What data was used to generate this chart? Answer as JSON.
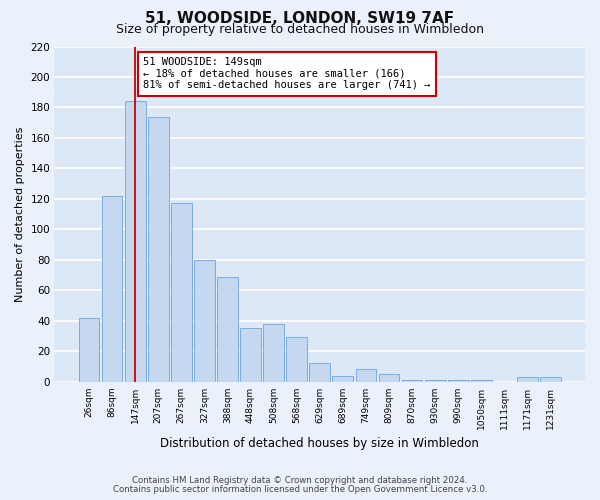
{
  "title": "51, WOODSIDE, LONDON, SW19 7AF",
  "subtitle": "Size of property relative to detached houses in Wimbledon",
  "xlabel": "Distribution of detached houses by size in Wimbledon",
  "ylabel": "Number of detached properties",
  "footnote1": "Contains HM Land Registry data © Crown copyright and database right 2024.",
  "footnote2": "Contains public sector information licensed under the Open Government Licence v3.0.",
  "bar_labels": [
    "26sqm",
    "86sqm",
    "147sqm",
    "207sqm",
    "267sqm",
    "327sqm",
    "388sqm",
    "448sqm",
    "508sqm",
    "568sqm",
    "629sqm",
    "689sqm",
    "749sqm",
    "809sqm",
    "870sqm",
    "930sqm",
    "990sqm",
    "1050sqm",
    "1111sqm",
    "1171sqm",
    "1231sqm"
  ],
  "bar_values": [
    42,
    122,
    184,
    174,
    117,
    80,
    69,
    35,
    38,
    29,
    12,
    4,
    8,
    5,
    1,
    1,
    1,
    1,
    0,
    3,
    3
  ],
  "bar_color": "#c5d8f0",
  "bar_edge_color": "#7aade0",
  "bg_color": "#dce8f5",
  "fig_bg_color": "#eaf1fa",
  "grid_color": "#ffffff",
  "marker_x_label": "147sqm",
  "marker_color": "#cc0000",
  "annotation_text": "51 WOODSIDE: 149sqm\n← 18% of detached houses are smaller (166)\n81% of semi-detached houses are larger (741) →",
  "annotation_box_color": "#ffffff",
  "annotation_box_edge": "#cc0000",
  "ylim": [
    0,
    220
  ],
  "yticks": [
    0,
    20,
    40,
    60,
    80,
    100,
    120,
    140,
    160,
    180,
    200,
    220
  ]
}
